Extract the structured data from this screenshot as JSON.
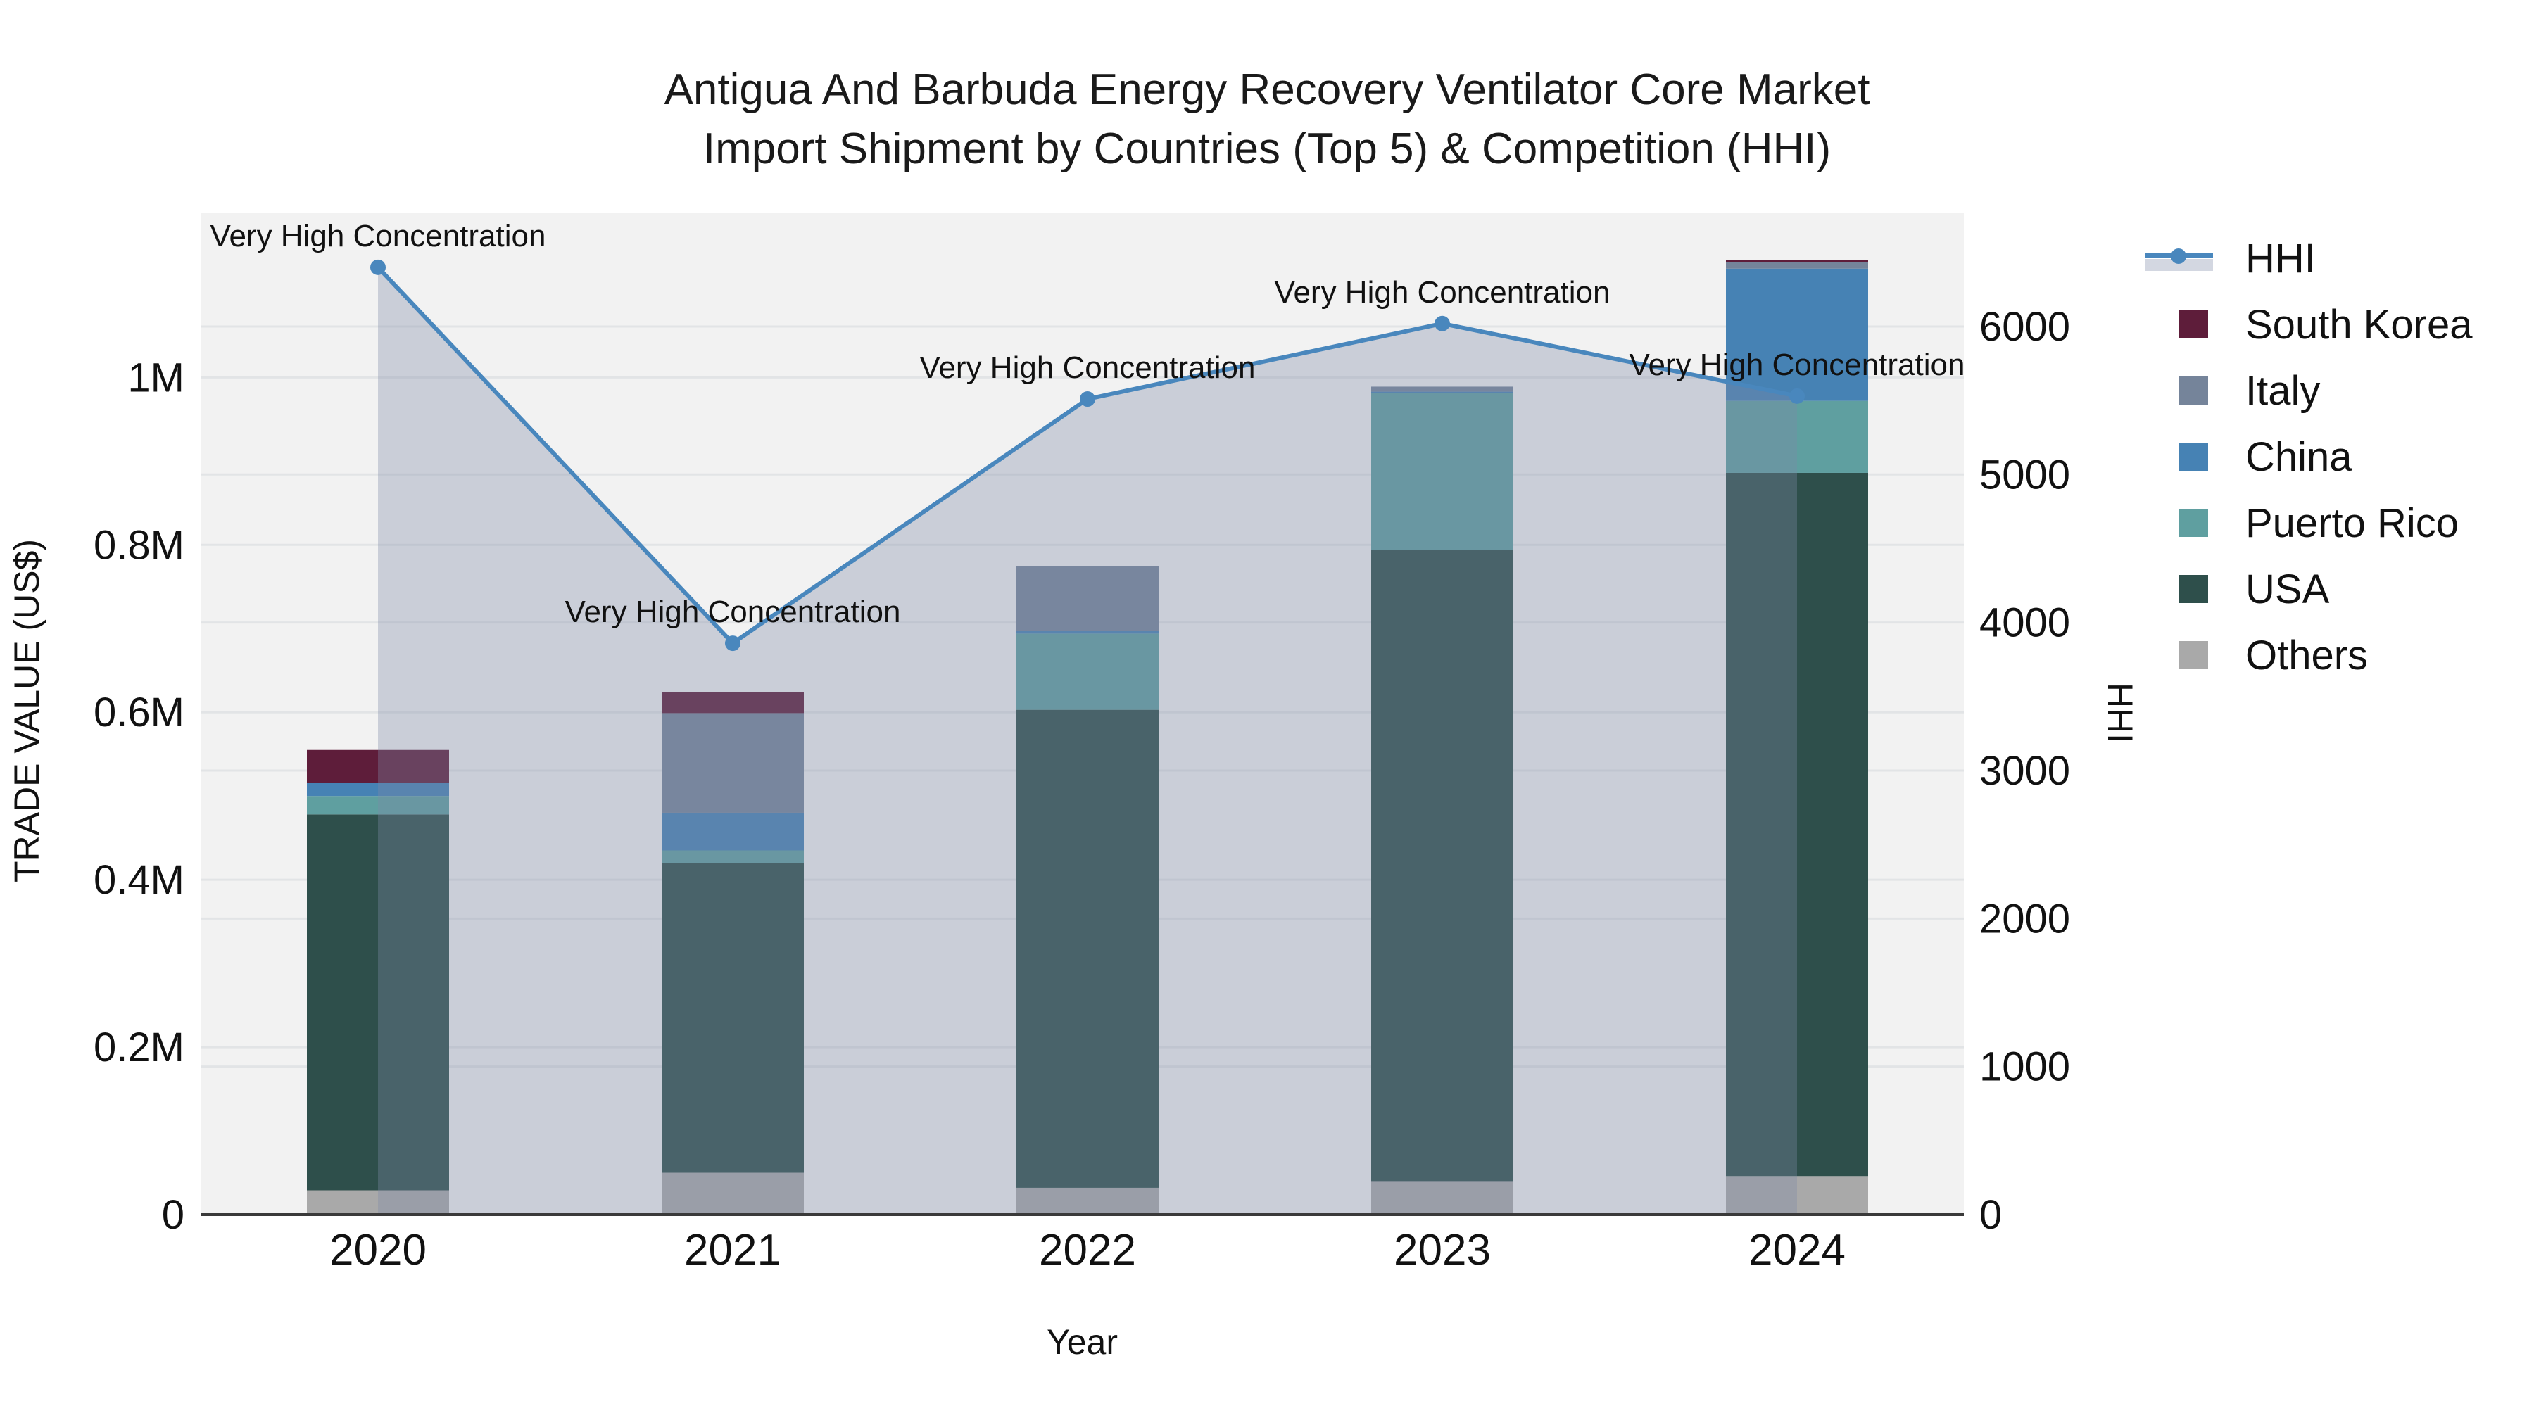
{
  "chart_data": {
    "type": "combo-stacked-bar-line",
    "title_lines": [
      "Antigua And Barbuda Energy Recovery Ventilator Core Market",
      "Import Shipment by Countries (Top 5) & Competition (HHI)"
    ],
    "categories": [
      "2020",
      "2021",
      "2022",
      "2023",
      "2024"
    ],
    "bar_unit": "US$ millions",
    "bar_series_bottom_to_top": [
      {
        "name": "Others",
        "color": "#a9a9a9",
        "values": [
          0.029,
          0.05,
          0.032,
          0.04,
          0.046
        ]
      },
      {
        "name": "USA",
        "color": "#2e4f4b",
        "values": [
          0.449,
          0.37,
          0.571,
          0.754,
          0.84
        ]
      },
      {
        "name": "Puerto Rico",
        "color": "#5f9fa0",
        "values": [
          0.022,
          0.015,
          0.091,
          0.187,
          0.086
        ]
      },
      {
        "name": "China",
        "color": "#4682b4",
        "values": [
          0.016,
          0.045,
          0.003,
          0.002,
          0.158
        ]
      },
      {
        "name": "Italy",
        "color": "#75849a",
        "values": [
          0.0,
          0.119,
          0.078,
          0.006,
          0.008
        ]
      },
      {
        "name": "South Korea",
        "color": "#5e1d3a",
        "values": [
          0.039,
          0.025,
          0.0,
          0.0,
          0.002
        ]
      }
    ],
    "line_series": {
      "name": "HHI",
      "color": "#4987bd",
      "area_fill": "rgba(126,139,168,0.34)",
      "values": [
        6400,
        3860,
        5510,
        6020,
        5530
      ],
      "annotations": [
        "Very High Concentration",
        "Very High Concentration",
        "Very High Concentration",
        "Very High Concentration",
        "Very High Concentration"
      ]
    },
    "left_axis": {
      "label": "TRADE VALUE (US$)",
      "max": 1.197,
      "ticks": [
        {
          "v": 0.0,
          "label": "0"
        },
        {
          "v": 0.2,
          "label": "0.2M"
        },
        {
          "v": 0.4,
          "label": "0.4M"
        },
        {
          "v": 0.6,
          "label": "0.6M"
        },
        {
          "v": 0.8,
          "label": "0.8M"
        },
        {
          "v": 1.0,
          "label": "1M"
        }
      ]
    },
    "right_axis": {
      "label": "HHI",
      "max": 6770,
      "ticks": [
        {
          "v": 0,
          "label": "0"
        },
        {
          "v": 1000,
          "label": "1000"
        },
        {
          "v": 2000,
          "label": "2000"
        },
        {
          "v": 3000,
          "label": "3000"
        },
        {
          "v": 4000,
          "label": "4000"
        },
        {
          "v": 5000,
          "label": "5000"
        },
        {
          "v": 6000,
          "label": "6000"
        }
      ]
    },
    "x_axis": {
      "label": "Year"
    },
    "legend": {
      "position": "right",
      "items": [
        {
          "label": "HHI",
          "type": "line",
          "color": "#4987bd"
        },
        {
          "label": "South Korea",
          "type": "box",
          "color": "#5e1d3a"
        },
        {
          "label": "Italy",
          "type": "box",
          "color": "#75849a"
        },
        {
          "label": "China",
          "type": "box",
          "color": "#4682b4"
        },
        {
          "label": "Puerto Rico",
          "type": "box",
          "color": "#5f9fa0"
        },
        {
          "label": "USA",
          "type": "box",
          "color": "#2e4f4b"
        },
        {
          "label": "Others",
          "type": "box",
          "color": "#a9a9a9"
        }
      ]
    },
    "style": {
      "plot_bg": "#f2f2f2",
      "grid_color": "#e2e4e6",
      "axis_line_color": "#3a3a3a",
      "text_color": "#111111"
    }
  }
}
